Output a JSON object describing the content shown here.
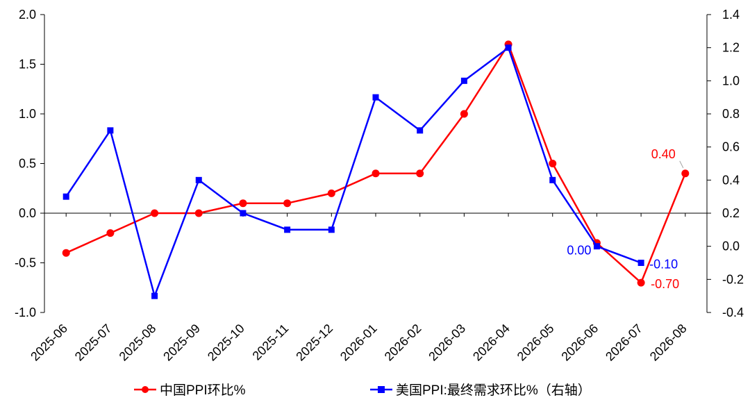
{
  "chart_data": {
    "type": "line",
    "categories": [
      "2025-06",
      "2025-07",
      "2025-08",
      "2025-09",
      "2025-10",
      "2025-11",
      "2025-12",
      "2026-01",
      "2026-02",
      "2026-03",
      "2026-04",
      "2026-05",
      "2026-06",
      "2026-07",
      "2026-08"
    ],
    "left_axis": {
      "ylim": [
        -1.0,
        2.0
      ],
      "ticks": [
        2.0,
        1.5,
        1.0,
        0.5,
        0.0,
        -0.5,
        -1.0
      ],
      "tick_labels": [
        "2.0",
        "1.5",
        "1.0",
        "0.5",
        "0.0",
        "-0.5",
        "-1.0"
      ]
    },
    "right_axis": {
      "ylim": [
        -0.4,
        1.4
      ],
      "ticks": [
        1.4,
        1.2,
        1.0,
        0.8,
        0.6,
        0.4,
        0.2,
        0.0,
        -0.2,
        -0.4
      ],
      "tick_labels": [
        "1.4",
        "1.2",
        "1.0",
        "0.8",
        "0.6",
        "0.4",
        "0.2",
        "0.0",
        "-0.2",
        "-0.4"
      ]
    },
    "series": [
      {
        "name": "中国PPI环比%",
        "axis": "left",
        "color": "#ff0000",
        "marker": "circle",
        "values": [
          -0.4,
          -0.2,
          0.0,
          0.0,
          0.1,
          0.1,
          0.2,
          0.4,
          0.4,
          1.0,
          1.7,
          0.5,
          -0.3,
          -0.7,
          0.4
        ],
        "data_labels": [
          {
            "index": 13,
            "text": "-0.70"
          },
          {
            "index": 14,
            "text": "0.40"
          }
        ]
      },
      {
        "name": "美国PPI:最终需求环比%（右轴）",
        "axis": "right",
        "color": "#0000ff",
        "marker": "square",
        "values": [
          0.3,
          0.7,
          -0.3,
          0.4,
          0.2,
          0.1,
          0.1,
          0.9,
          0.7,
          1.0,
          1.2,
          0.4,
          0.0,
          -0.1,
          null
        ],
        "data_labels": [
          {
            "index": 12,
            "text": "0.00"
          },
          {
            "index": 13,
            "text": "-0.10"
          }
        ]
      }
    ],
    "legend": {
      "position": "bottom"
    }
  }
}
